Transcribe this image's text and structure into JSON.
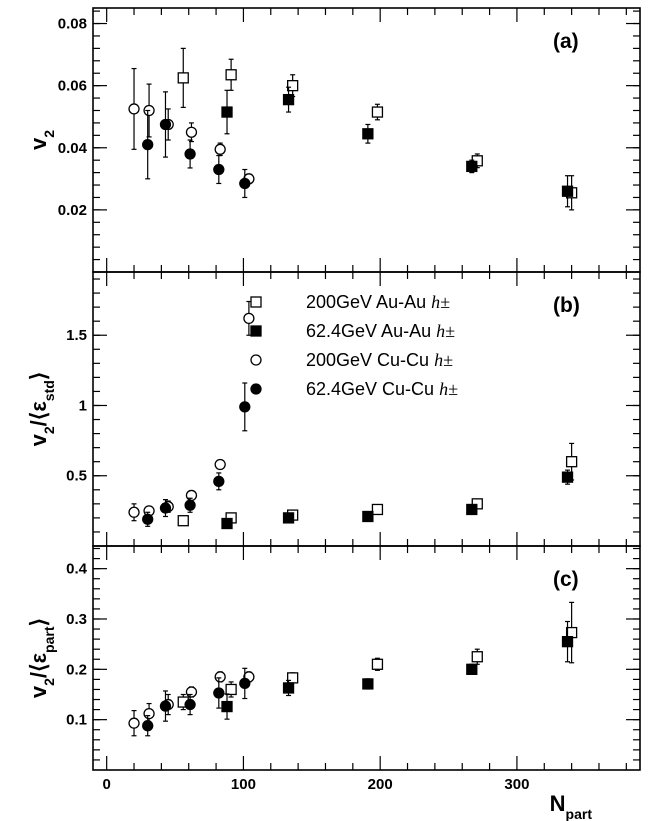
{
  "chart_data": {
    "type": "scatter",
    "xlabel": "N_part",
    "xlim": [
      -10,
      390
    ],
    "xticks": [
      "0",
      "100",
      "200",
      "300"
    ],
    "legend": {
      "placement": "center (panel b)",
      "entries": [
        {
          "label": "200GeV Au-Au",
          "suffix": "h±",
          "marker": "open-square"
        },
        {
          "label": "62.4GeV Au-Au",
          "suffix": "h±",
          "marker": "filled-square"
        },
        {
          "label": "200GeV Cu-Cu",
          "suffix": "h±",
          "marker": "open-circle"
        },
        {
          "label": "62.4GeV Cu-Cu",
          "suffix": "h±",
          "marker": "filled-circle"
        }
      ]
    },
    "panels": [
      {
        "label": "(a)",
        "ylabel": "v2",
        "ylim": [
          0.0,
          0.085
        ],
        "yticks": [
          0.02,
          0.04,
          0.06,
          0.08
        ],
        "ytick_labels": [
          "0.02",
          "0.04",
          "0.06",
          "0.08"
        ],
        "series": [
          {
            "name": "200GeV Au-Au h±",
            "marker": "open-square",
            "x": [
              56,
              91,
              136,
              198,
              271,
              340
            ],
            "y": [
              0.0625,
              0.0635,
              0.06,
              0.0515,
              0.0358,
              0.0255
            ],
            "err": [
              0.0095,
              0.005,
              0.0035,
              0.0025,
              0.0022,
              0.0055
            ]
          },
          {
            "name": "62.4GeV Au-Au h±",
            "marker": "filled-square",
            "x": [
              88,
              133,
              191,
              267,
              337
            ],
            "y": [
              0.0515,
              0.0555,
              0.0445,
              0.034,
              0.026
            ],
            "err": [
              0.007,
              0.004,
              0.003,
              0.002,
              0.005
            ]
          },
          {
            "name": "200GeV Cu-Cu h±",
            "marker": "open-circle",
            "x": [
              20,
              31,
              45,
              62,
              83,
              104
            ],
            "y": [
              0.0525,
              0.052,
              0.0475,
              0.045,
              0.0395,
              0.03
            ],
            "err": [
              0.013,
              0.0085,
              0.005,
              0.003,
              0.002,
              0.0015
            ]
          },
          {
            "name": "62.4GeV Cu-Cu h±",
            "marker": "filled-circle",
            "x": [
              30,
              43,
              61,
              82,
              101
            ],
            "y": [
              0.041,
              0.0475,
              0.038,
              0.033,
              0.0285
            ],
            "err": [
              0.011,
              0.0105,
              0.0045,
              0.0045,
              0.0045
            ]
          }
        ]
      },
      {
        "label": "(b)",
        "ylabel": "v2/⟨εstd⟩",
        "ylim": [
          0.0,
          1.95
        ],
        "yticks": [
          0.5,
          1.0,
          1.5
        ],
        "ytick_labels": [
          "0.5",
          "1",
          "1.5"
        ],
        "series": [
          {
            "name": "200GeV Au-Au h±",
            "marker": "open-square",
            "x": [
              56,
              91,
              136,
              198,
              271,
              340
            ],
            "y": [
              0.18,
              0.2,
              0.22,
              0.26,
              0.3,
              0.6
            ],
            "err": [
              0.02,
              0.02,
              0.02,
              0.02,
              0.03,
              0.13
            ]
          },
          {
            "name": "62.4GeV Au-Au h±",
            "marker": "filled-square",
            "x": [
              88,
              133,
              191,
              267,
              337
            ],
            "y": [
              0.16,
              0.2,
              0.21,
              0.26,
              0.49
            ],
            "err": [
              0.02,
              0.02,
              0.02,
              0.02,
              0.05
            ]
          },
          {
            "name": "200GeV Cu-Cu h±",
            "marker": "open-circle",
            "x": [
              20,
              31,
              45,
              62,
              83,
              104
            ],
            "y": [
              0.24,
              0.25,
              0.28,
              0.36,
              0.58,
              1.62
            ],
            "err": [
              0.06,
              0.03,
              0.04,
              0.03,
              0.02,
              0.12
            ]
          },
          {
            "name": "62.4GeV Cu-Cu h±",
            "marker": "filled-circle",
            "x": [
              30,
              43,
              61,
              82,
              101
            ],
            "y": [
              0.19,
              0.27,
              0.29,
              0.46,
              0.99
            ],
            "err": [
              0.05,
              0.06,
              0.05,
              0.06,
              0.17
            ]
          }
        ]
      },
      {
        "label": "(c)",
        "ylabel": "v2/⟨εpart⟩",
        "ylim": [
          0.0,
          0.445
        ],
        "yticks": [
          0.1,
          0.2,
          0.3,
          0.4
        ],
        "ytick_labels": [
          "0.1",
          "0.2",
          "0.3",
          "0.4"
        ],
        "series": [
          {
            "name": "200GeV Au-Au h±",
            "marker": "open-square",
            "x": [
              56,
              91,
              136,
              198,
              271,
              340
            ],
            "y": [
              0.135,
              0.16,
              0.183,
              0.21,
              0.225,
              0.273
            ],
            "err": [
              0.015,
              0.015,
              0.01,
              0.012,
              0.015,
              0.06
            ]
          },
          {
            "name": "62.4GeV Au-Au h±",
            "marker": "filled-square",
            "x": [
              88,
              133,
              191,
              267,
              337
            ],
            "y": [
              0.126,
              0.163,
              0.171,
              0.2,
              0.255
            ],
            "err": [
              0.025,
              0.015,
              0.01,
              0.01,
              0.04
            ]
          },
          {
            "name": "200GeV Cu-Cu h±",
            "marker": "open-circle",
            "x": [
              20,
              31,
              45,
              62,
              83,
              104
            ],
            "y": [
              0.093,
              0.112,
              0.13,
              0.155,
              0.185,
              0.185
            ],
            "err": [
              0.025,
              0.02,
              0.02,
              0.01,
              0.01,
              0.01
            ]
          },
          {
            "name": "62.4GeV Cu-Cu h±",
            "marker": "filled-circle",
            "x": [
              30,
              43,
              61,
              82,
              101
            ],
            "y": [
              0.088,
              0.127,
              0.13,
              0.153,
              0.172
            ],
            "err": [
              0.02,
              0.03,
              0.02,
              0.03,
              0.03
            ]
          }
        ]
      }
    ]
  }
}
